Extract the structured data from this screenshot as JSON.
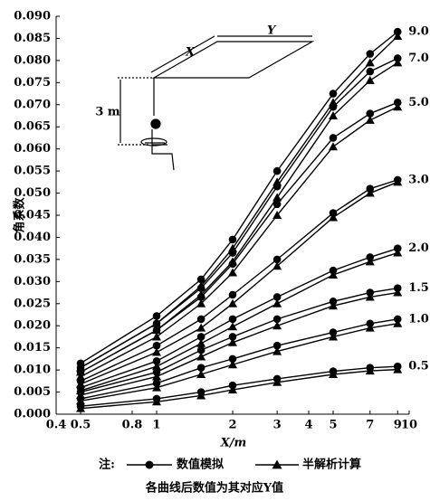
{
  "chart_data": {
    "type": "line",
    "x_scale": "log",
    "xlabel": "X/m",
    "ylabel": "角系数",
    "x": [
      0.5,
      1,
      1.5,
      2,
      3,
      5,
      7,
      9
    ],
    "xlim": [
      0.4,
      10
    ],
    "xticks": [
      0.4,
      0.5,
      0.8,
      1,
      2,
      3,
      4,
      5,
      7,
      9,
      10
    ],
    "ylim": [
      0,
      0.09
    ],
    "yticks": [
      {
        "value": 0,
        "label": "0.000"
      },
      {
        "value": 0.005,
        "label": "0.005"
      },
      {
        "value": 0.01,
        "label": "0.010"
      },
      {
        "value": 0.015,
        "label": "0.015"
      },
      {
        "value": 0.02,
        "label": "0.020"
      },
      {
        "value": 0.025,
        "label": "0.025"
      },
      {
        "value": 0.03,
        "label": "0.030"
      },
      {
        "value": 0.035,
        "label": "0.035"
      },
      {
        "value": 0.04,
        "label": "0.040"
      },
      {
        "value": 0.045,
        "label": "0.045"
      },
      {
        "value": 0.05,
        "label": "0.050"
      },
      {
        "value": 0.055,
        "label": "0.055"
      },
      {
        "value": 0.06,
        "label": "0.060"
      },
      {
        "value": 0.065,
        "label": "0.065"
      },
      {
        "value": 0.07,
        "label": "0.070"
      },
      {
        "value": 0.075,
        "label": "0.075"
      },
      {
        "value": 0.08,
        "label": "0.080"
      },
      {
        "value": 0.085,
        "label": "0.085"
      },
      {
        "value": 0.09,
        "label": "0.090"
      }
    ],
    "color": "#000000",
    "legend": {
      "note": "注:",
      "items": [
        "数值模拟",
        "半解析计算"
      ]
    },
    "caption": "各曲线后数值为其对应Y值",
    "inset": {
      "x_label": "X",
      "y_label": "Y",
      "height_label": "3 m"
    },
    "curves": [
      {
        "label": "9.0",
        "sim": [
          0.0115,
          0.0222,
          0.0305,
          0.0395,
          0.055,
          0.0725,
          0.0815,
          0.0865
        ],
        "ana": [
          0.0105,
          0.0205,
          0.029,
          0.0375,
          0.0525,
          0.0705,
          0.0795,
          0.0855
        ]
      },
      {
        "label": "7.0",
        "sim": [
          0.0105,
          0.0205,
          0.0285,
          0.0365,
          0.0515,
          0.0695,
          0.0775,
          0.0805
        ],
        "ana": [
          0.0095,
          0.019,
          0.027,
          0.0345,
          0.049,
          0.0675,
          0.0755,
          0.0795
        ]
      },
      {
        "label": "5.0",
        "sim": [
          0.0095,
          0.019,
          0.0265,
          0.034,
          0.0475,
          0.0625,
          0.068,
          0.0705
        ],
        "ana": [
          0.0085,
          0.0175,
          0.025,
          0.032,
          0.045,
          0.0605,
          0.0665,
          0.0695
        ]
      },
      {
        "label": "3.0",
        "sim": [
          0.0075,
          0.0155,
          0.0215,
          0.027,
          0.035,
          0.0455,
          0.051,
          0.053
        ],
        "ana": [
          0.0068,
          0.014,
          0.0195,
          0.025,
          0.0335,
          0.0445,
          0.05,
          0.0525
        ]
      },
      {
        "label": "2.0",
        "sim": [
          0.006,
          0.012,
          0.0175,
          0.0215,
          0.0265,
          0.0325,
          0.0355,
          0.0375
        ],
        "ana": [
          0.0053,
          0.0108,
          0.016,
          0.0198,
          0.025,
          0.0315,
          0.0345,
          0.0365
        ]
      },
      {
        "label": "1.5",
        "sim": [
          0.005,
          0.0095,
          0.0145,
          0.0175,
          0.0215,
          0.0255,
          0.0275,
          0.0285
        ],
        "ana": [
          0.0043,
          0.0085,
          0.013,
          0.0162,
          0.02,
          0.0245,
          0.0265,
          0.0275
        ]
      },
      {
        "label": "1.0",
        "sim": [
          0.0035,
          0.007,
          0.0105,
          0.0125,
          0.0155,
          0.0185,
          0.0205,
          0.0215
        ],
        "ana": [
          0.003,
          0.006,
          0.009,
          0.0112,
          0.0142,
          0.0175,
          0.0195,
          0.0205
        ]
      },
      {
        "label": "0.5",
        "sim": [
          0.0018,
          0.0035,
          0.005,
          0.0065,
          0.008,
          0.0097,
          0.0105,
          0.0108
        ],
        "ana": [
          0.0013,
          0.0028,
          0.0042,
          0.0055,
          0.0072,
          0.009,
          0.0098,
          0.0101
        ]
      }
    ]
  }
}
